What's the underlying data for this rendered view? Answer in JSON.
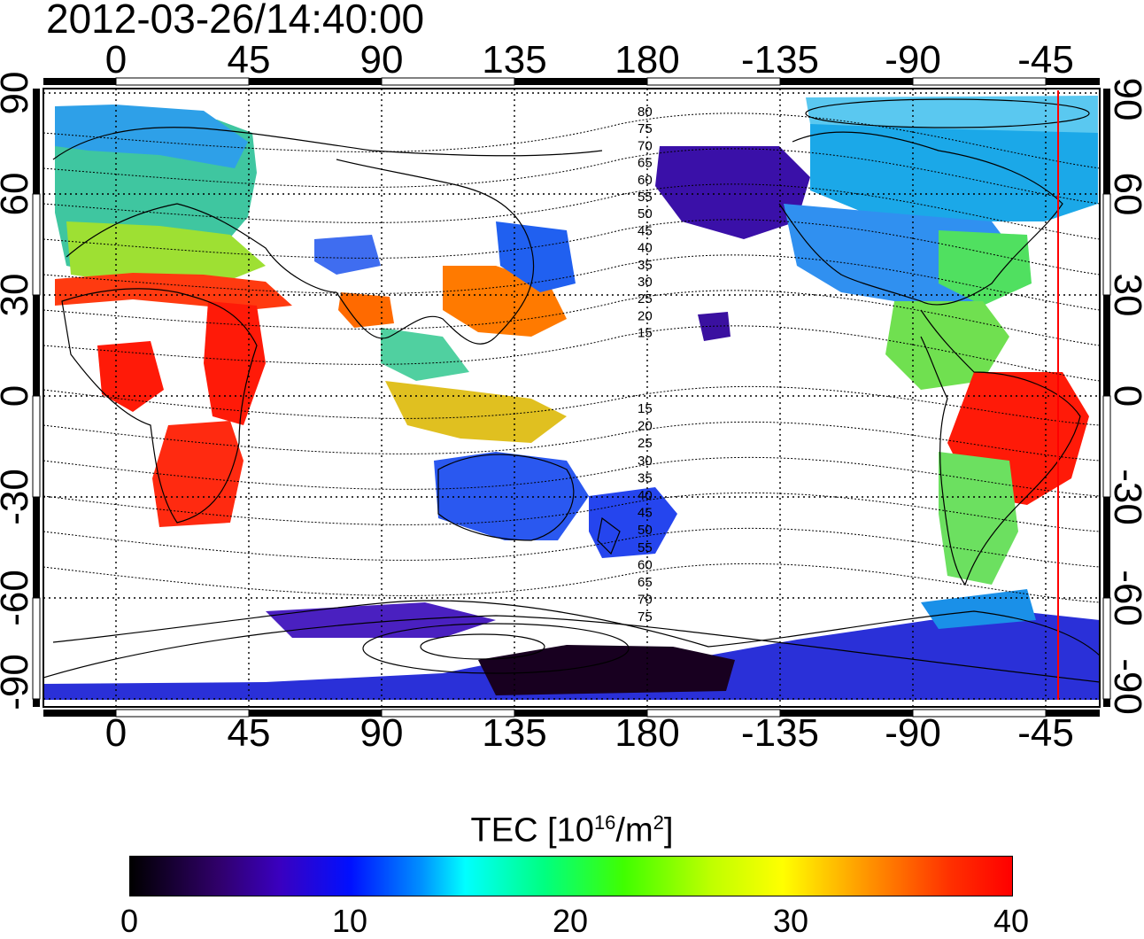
{
  "title": "2012-03-26/14:40:00",
  "map": {
    "lon_top_labels": [
      "0",
      "45",
      "90",
      "135",
      "180",
      "-135",
      "-90",
      "-45"
    ],
    "lon_bottom_labels": [
      "0",
      "45",
      "90",
      "135",
      "180",
      "-135",
      "-90",
      "-45"
    ],
    "lat_left_labels": [
      "90",
      "60",
      "30",
      "0",
      "-30",
      "-60",
      "-90"
    ],
    "lat_right_labels": [
      "90",
      "60",
      "30",
      "0",
      "-30",
      "-60",
      "-90"
    ],
    "contour_labels_north": [
      "80",
      "75",
      "70",
      "65",
      "60",
      "55",
      "50",
      "45",
      "40",
      "35",
      "30",
      "25",
      "20",
      "15"
    ],
    "contour_labels_south": [
      "15",
      "20",
      "25",
      "30",
      "35",
      "40",
      "45",
      "50",
      "55",
      "60",
      "65",
      "70",
      "75"
    ],
    "terminator_longitude": -40
  },
  "colorbar": {
    "title_prefix": "TEC  [10",
    "title_exp1": "16",
    "title_mid": "/m",
    "title_exp2": "2",
    "title_suffix": "]",
    "ticks": [
      "0",
      "10",
      "20",
      "30",
      "40"
    ],
    "range": [
      0,
      40
    ]
  },
  "colors": {
    "terminator": "#ff0000"
  }
}
